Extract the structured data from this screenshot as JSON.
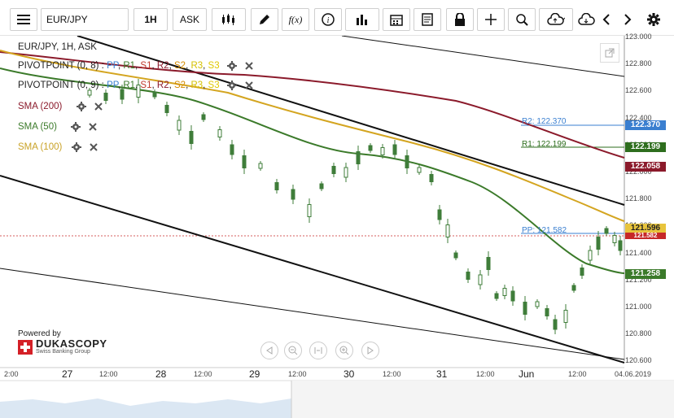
{
  "toolbar": {
    "symbol": "EUR/JPY",
    "timeframe": "1H",
    "side": "ASK"
  },
  "chart": {
    "title": "EUR/JPY, 1H, ASK",
    "indicators": [
      {
        "name": "PIVOTPOINT (0, 8)",
        "sep": " : ",
        "pp": "PP",
        "r1": "R1",
        "s1": "S1",
        "r2": "R2",
        "s2": "S2",
        "r3": "R3",
        "s3": "S3"
      },
      {
        "name": "PIVOTPOINT (0, 9)",
        "sep": " : ",
        "pp": "PP",
        "r1": "R1",
        "s1": "S1",
        "r2": "R2",
        "s2": "S2",
        "r3": "R3",
        "s3": "S3"
      }
    ],
    "sma": [
      {
        "label": "SMA (200)",
        "color": "#8b1a2b"
      },
      {
        "label": "SMA (50)",
        "color": "#3b7a2a"
      },
      {
        "label": "SMA (100)",
        "color": "#c9a227"
      }
    ],
    "pivot_texts": {
      "r2": "R2: 122.370",
      "r1": "R1: 122.199",
      "pp": "PP: 121.582"
    },
    "price_axis": [
      "123.000",
      "122.800",
      "122.600",
      "122.400",
      "122.200",
      "122.000",
      "121.800",
      "121.600",
      "121.400",
      "121.200",
      "121.000",
      "120.800",
      "120.600"
    ],
    "price_boxes": {
      "r2": "122.370",
      "r1": "122.199",
      "sma200": "122.058",
      "sma100": "121.596",
      "current": "121.582",
      "sma50": "121.258"
    },
    "x_labels": [
      {
        "t": "2:00"
      },
      {
        "t": "27",
        "big": true
      },
      {
        "t": "12:00"
      },
      {
        "t": "28",
        "big": true
      },
      {
        "t": "12:00"
      },
      {
        "t": "29",
        "big": true
      },
      {
        "t": "12:00"
      },
      {
        "t": "30",
        "big": true
      },
      {
        "t": "12:00"
      },
      {
        "t": "31",
        "big": true
      },
      {
        "t": "12:00"
      },
      {
        "t": "Jun",
        "big": true
      },
      {
        "t": "12:00"
      },
      {
        "t": "04.06.2019"
      }
    ],
    "logo": {
      "powered": "Powered by",
      "brand": "DUKASCOPY",
      "sub": "Swiss Banking Group"
    }
  },
  "colors": {
    "sma200": "#8b1a2b",
    "sma50": "#3b7a2a",
    "sma100": "#d4a520",
    "pp": "#3a7fd0",
    "r_blue": "#3a7fd0",
    "r_green": "#2e6e1e",
    "candle": "#3f7d3a",
    "trend": "#111111"
  }
}
